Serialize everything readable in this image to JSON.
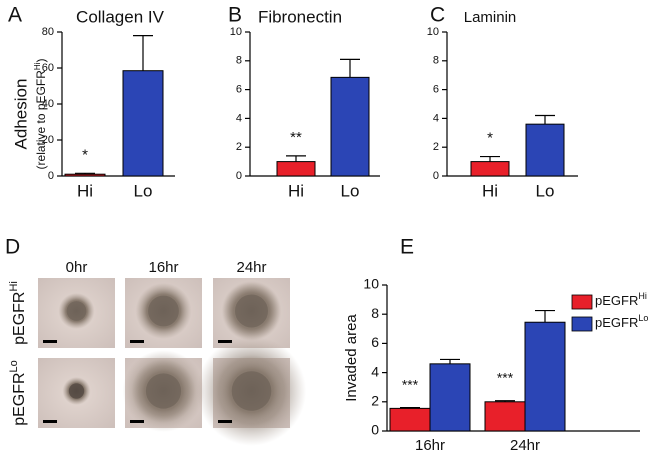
{
  "chart_data": [
    {
      "type": "bar",
      "panel": "A",
      "title": "Collagen IV",
      "y_label": "Adhesion",
      "y_label_2": [
        "(relative to pEGFR",
        "Hi",
        ")"
      ],
      "categories": [
        "Hi",
        "Lo"
      ],
      "values": [
        1,
        58.5
      ],
      "errors": [
        0.5,
        19.5
      ],
      "colors": [
        "#e8202a",
        "#2b45b5"
      ],
      "annotations": [
        "*",
        null
      ],
      "ylim": [
        0,
        80
      ],
      "yticks": [
        0,
        20,
        40,
        60,
        80
      ]
    },
    {
      "type": "bar",
      "panel": "B",
      "title": "Fibronectin",
      "categories": [
        "Hi",
        "Lo"
      ],
      "values": [
        1.0,
        6.85
      ],
      "errors": [
        0.4,
        1.25
      ],
      "colors": [
        "#e8202a",
        "#2b45b5"
      ],
      "annotations": [
        "**",
        null
      ],
      "ylim": [
        0,
        10
      ],
      "yticks": [
        0,
        2,
        4,
        6,
        8,
        10
      ]
    },
    {
      "type": "bar",
      "panel": "C",
      "title": "Laminin",
      "categories": [
        "Hi",
        "Lo"
      ],
      "values": [
        1.0,
        3.6
      ],
      "errors": [
        0.35,
        0.6
      ],
      "colors": [
        "#e8202a",
        "#2b45b5"
      ],
      "annotations": [
        "*",
        null
      ],
      "ylim": [
        0,
        10
      ],
      "yticks": [
        0,
        2,
        4,
        6,
        8,
        10
      ]
    },
    {
      "type": "grouped_bar",
      "panel": "E",
      "y_label": "Invaded area",
      "categories": [
        "16hr",
        "24hr"
      ],
      "series": [
        {
          "name": "pEGFR",
          "name_sup": "Hi",
          "color": "#e8202a",
          "values": [
            1.55,
            2.0
          ],
          "errors": [
            0.05,
            0.07
          ]
        },
        {
          "name": "pEGFR",
          "name_sup": "Lo",
          "color": "#2b45b5",
          "values": [
            4.6,
            7.45
          ],
          "errors": [
            0.3,
            0.8
          ]
        }
      ],
      "annotations": [
        "***",
        "***"
      ],
      "ylim": [
        0,
        10
      ],
      "yticks": [
        0,
        2,
        4,
        6,
        8,
        10
      ],
      "legend": "upper-right"
    }
  ],
  "panel_d": {
    "label": "D",
    "columns": [
      "0hr",
      "16hr",
      "24hr"
    ],
    "rows": [
      [
        "pEGFR",
        "Hi"
      ],
      [
        "pEGFR",
        "Lo"
      ]
    ]
  }
}
